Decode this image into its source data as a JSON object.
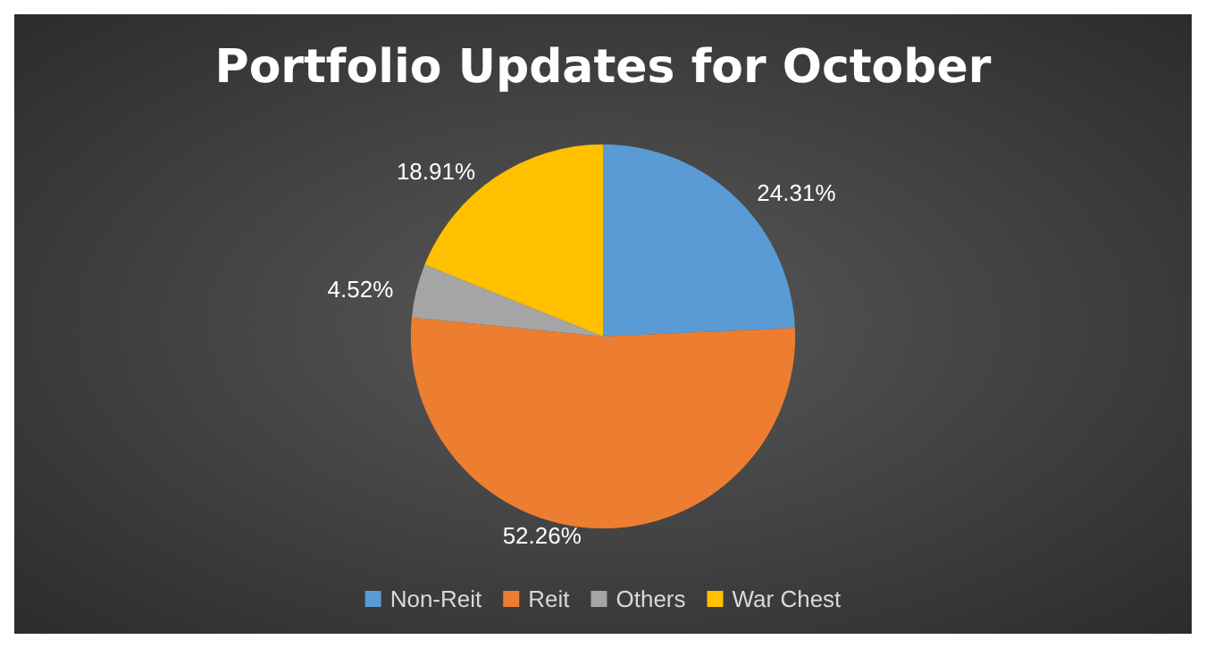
{
  "chart_data": {
    "type": "pie",
    "title": "Portfolio Updates for October",
    "categories": [
      "Non-Reit",
      "Reit",
      "Others",
      "War Chest"
    ],
    "values": [
      24.31,
      52.26,
      4.52,
      18.91
    ],
    "value_labels": [
      "24.31%",
      "52.26%",
      "4.52%",
      "18.91%"
    ],
    "colors": [
      "#5b9bd5",
      "#ed7d31",
      "#a5a5a5",
      "#ffc000"
    ],
    "legend": "bottom"
  }
}
